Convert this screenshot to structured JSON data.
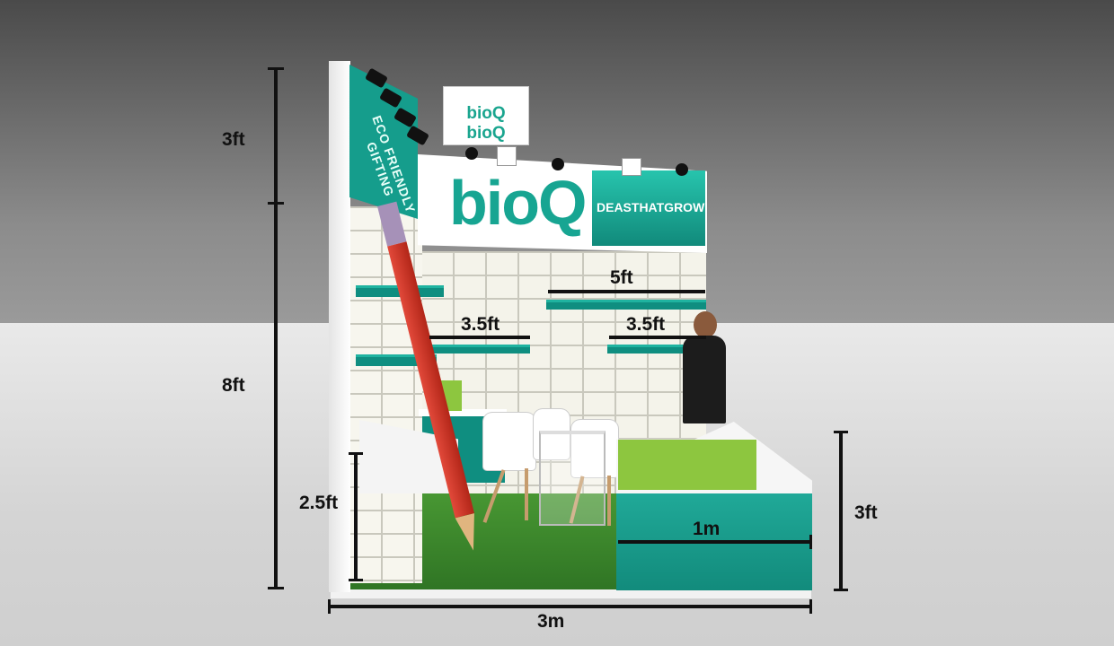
{
  "colors": {
    "teal": "#159d8c",
    "green": "#8dc63f",
    "pencil_red": "#c62d20",
    "grass": "#3f8a2e",
    "dimension_lines": "#111111"
  },
  "booth": {
    "brand_cube_text": "bioQ bioQ",
    "main_logo_text": "bioQ",
    "tagline_text": "DEASTHATGROW",
    "side_fascia_text": "ECO FRIENDLY GIFTING"
  },
  "dimensions": {
    "top_height": "3ft",
    "wall_height": "8ft",
    "desk_height": "2.5ft",
    "counter_height": "3ft",
    "shelf_top": "5ft",
    "shelf_left": "3.5ft",
    "shelf_right": "3.5ft",
    "counter_width": "1m",
    "booth_width": "3m"
  }
}
